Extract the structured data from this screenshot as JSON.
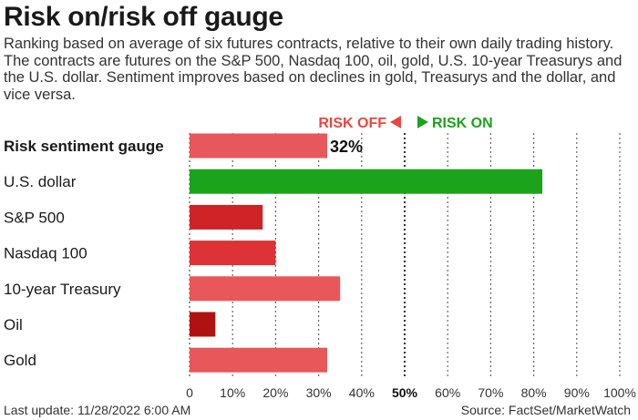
{
  "header": {
    "title": "Risk on/risk off gauge",
    "subtitle": "Ranking based on average of six futures contracts, relative to their own daily trading history. The contracts are futures on the S&P 500, Nasdaq 100, oil, gold, U.S. 10-year Treasurys and the U.S. dollar. Sentiment improves based on declines in gold, Treasurys and the dollar, and vice versa."
  },
  "legend": {
    "risk_off_label": "RISK OFF",
    "risk_on_label": "RISK ON",
    "risk_off_color": "#e8473f",
    "risk_on_color": "#1ba31b"
  },
  "footer": {
    "last_update": "Last update: 11/28/2022 6:00 AM",
    "source": "Source: FactSet/MarketWatch"
  },
  "chart_data": {
    "type": "bar",
    "orientation": "horizontal",
    "categories": [
      "Risk sentiment gauge",
      "U.S. dollar",
      "S&P 500",
      "Nasdaq 100",
      "10-year Treasury",
      "Oil",
      "Gold"
    ],
    "values": [
      32,
      82,
      17,
      20,
      35,
      6,
      32
    ],
    "colors": [
      "#e8575a",
      "#1ba31b",
      "#cf2328",
      "#dd3236",
      "#e8575a",
      "#b01212",
      "#e8575a"
    ],
    "data_labels": [
      "32%",
      "",
      "",
      "",
      "",
      "",
      ""
    ],
    "bold_categories": [
      "Risk sentiment gauge"
    ],
    "xlim": [
      0,
      100
    ],
    "xticks": [
      "0",
      "10%",
      "20%",
      "30%",
      "40%",
      "50%",
      "60%",
      "70%",
      "80%",
      "90%",
      "100%"
    ],
    "bold_tick": "50%",
    "grid": "vertical dotted",
    "midline": 50
  }
}
